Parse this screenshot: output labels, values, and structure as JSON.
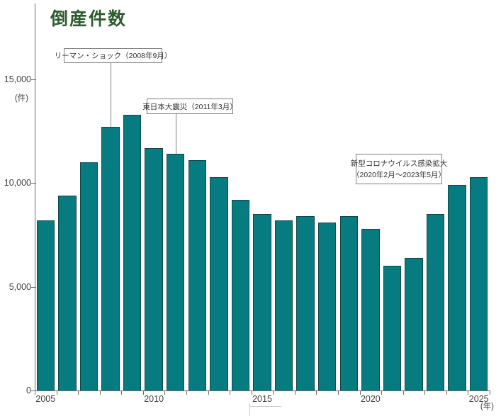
{
  "chart": {
    "title": "倒産件数",
    "y_unit": "(件)",
    "x_unit": "(年)",
    "colors": {
      "bar_fill": "#067c80",
      "bar_border": "#10474a",
      "title": "#2e5c2e",
      "axis": "#6a6a6a",
      "label": "#3f3f3f"
    },
    "y_ticks": [
      {
        "value": 0,
        "label": "0"
      },
      {
        "value": 5000,
        "label": "5,000"
      },
      {
        "value": 10000,
        "label": "10,000"
      },
      {
        "value": 15000,
        "label": "15,000"
      }
    ],
    "x_tick_labels": [
      {
        "year": 2005,
        "label": "2005"
      },
      {
        "year": 2010,
        "label": "2010"
      },
      {
        "year": 2015,
        "label": "2015"
      },
      {
        "year": 2020,
        "label": "2020"
      },
      {
        "year": 2025,
        "label": "2025"
      }
    ]
  },
  "annotations": {
    "lehman": {
      "text": "リーマン・ショック（2008年9月）",
      "target_year": 2008
    },
    "earthquake": {
      "text": "東日本大震災（2011年3月）",
      "target_year": 2011
    },
    "covid": {
      "line1": "新型コロナウイルス感染拡大",
      "line2": "（2020年2月～2023年5月）"
    }
  },
  "chart_data": {
    "type": "bar",
    "title": "倒産件数",
    "categories": [
      2005,
      2006,
      2007,
      2008,
      2009,
      2010,
      2011,
      2012,
      2013,
      2014,
      2015,
      2016,
      2017,
      2018,
      2019,
      2020,
      2021,
      2022,
      2023,
      2024,
      2025
    ],
    "values": [
      8200,
      9400,
      11000,
      12700,
      13300,
      11700,
      11400,
      11100,
      10300,
      9200,
      8500,
      8200,
      8400,
      8100,
      8400,
      7800,
      6000,
      6400,
      8500,
      9900,
      10300
    ],
    "xlabel": "年",
    "ylabel": "件",
    "ylim": [
      0,
      15000
    ],
    "y_tick_step": 5000,
    "grid": false,
    "legend": false,
    "annotations": [
      "リーマン・ショック（2008年9月）",
      "東日本大震災（2011年3月）",
      "新型コロナウイルス感染拡大（2020年2月～2023年5月）"
    ]
  }
}
